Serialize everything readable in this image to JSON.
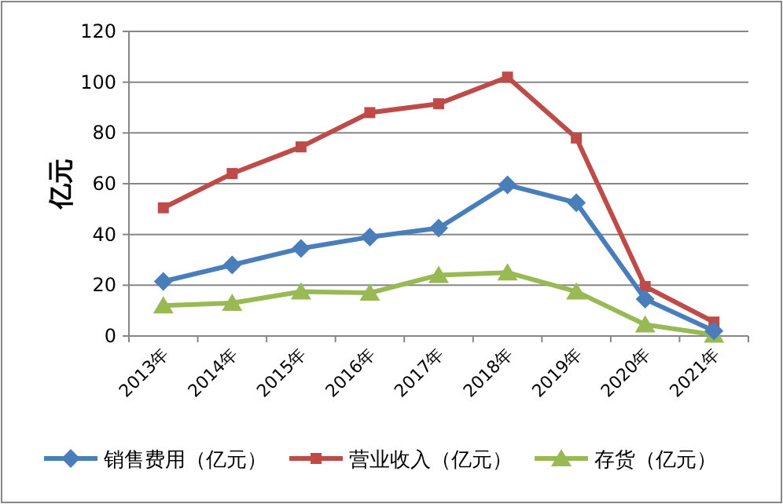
{
  "chart_data": {
    "type": "line",
    "ylabel": "亿元",
    "categories": [
      "2013年",
      "2014年",
      "2015年",
      "2016年",
      "2017年",
      "2018年",
      "2019年",
      "2020年",
      "2021年"
    ],
    "series": [
      {
        "name": "销售费用（亿元）",
        "color": "#4a7ebb",
        "marker": "diamond",
        "values": [
          21.5,
          28,
          34.5,
          39,
          42.5,
          59.5,
          52.5,
          14.5,
          2
        ]
      },
      {
        "name": "营业收入（亿元）",
        "color": "#be4b48",
        "marker": "square",
        "values": [
          50.5,
          64,
          74.5,
          88,
          91.5,
          102,
          78,
          19.5,
          5.5
        ]
      },
      {
        "name": "存货（亿元）",
        "color": "#98b954",
        "marker": "triangle",
        "values": [
          12,
          13,
          17.5,
          17,
          24,
          25,
          17.5,
          4.5,
          0.5
        ]
      }
    ],
    "ylim": [
      0,
      120
    ],
    "yticks": [
      0,
      20,
      40,
      60,
      80,
      100,
      120
    ],
    "grid": "y",
    "legend": "bottom"
  }
}
